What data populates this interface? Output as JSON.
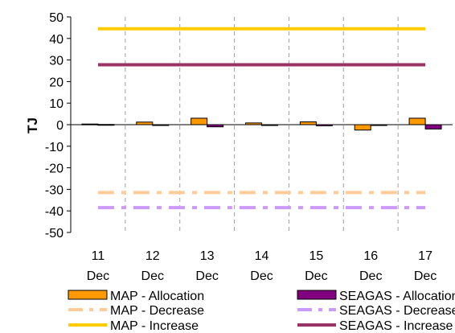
{
  "chart_data": {
    "type": "bar",
    "title": "",
    "xlabel": "",
    "ylabel": "TJ",
    "ylim": [
      -50,
      50
    ],
    "yticks": [
      50,
      40,
      30,
      20,
      10,
      0,
      -10,
      -20,
      -30,
      -40,
      -50
    ],
    "grid": "vertical-dashed",
    "legend_position": "bottom",
    "categories": [
      {
        "day": "11",
        "month": "Dec"
      },
      {
        "day": "12",
        "month": "Dec"
      },
      {
        "day": "13",
        "month": "Dec"
      },
      {
        "day": "14",
        "month": "Dec"
      },
      {
        "day": "15",
        "month": "Dec"
      },
      {
        "day": "16",
        "month": "Dec"
      },
      {
        "day": "17",
        "month": "Dec"
      }
    ],
    "series": [
      {
        "name": "MAP - Allocation",
        "kind": "bar",
        "color": "#FF9900",
        "values": [
          0.3,
          1.2,
          3.0,
          0.8,
          1.3,
          -2.5,
          3.0
        ]
      },
      {
        "name": "SEAGAS - Allocation",
        "kind": "bar",
        "color": "#800080",
        "values": [
          0.1,
          0,
          -1.0,
          0,
          -0.5,
          0,
          -2.0
        ]
      },
      {
        "name": "MAP - Decrease",
        "kind": "line",
        "style": "dashdot",
        "color": "#FFCC99",
        "values": [
          -31.5,
          -31.5,
          -31.5,
          -31.5,
          -31.5,
          -31.5,
          -31.5
        ]
      },
      {
        "name": "SEAGAS - Decrease",
        "kind": "line",
        "style": "dashdot",
        "color": "#CC99FF",
        "values": [
          -38.5,
          -38.5,
          -38.5,
          -38.5,
          -38.5,
          -38.5,
          -38.5
        ]
      },
      {
        "name": "MAP - Increase",
        "kind": "line",
        "style": "solid",
        "color": "#FFCC00",
        "values": [
          44.5,
          44.5,
          44.5,
          44.5,
          44.5,
          44.5,
          44.5
        ]
      },
      {
        "name": "SEAGAS - Increase",
        "kind": "line",
        "style": "solid",
        "color": "#993366",
        "values": [
          27.8,
          27.8,
          27.8,
          27.8,
          27.8,
          27.8,
          27.8
        ]
      }
    ]
  }
}
